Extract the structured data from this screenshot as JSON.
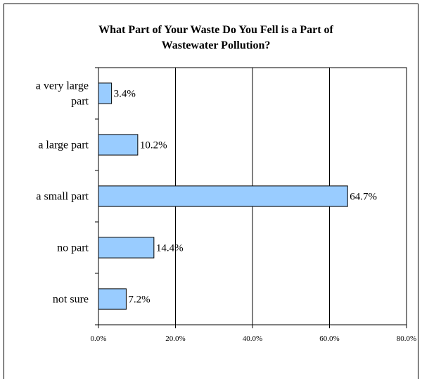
{
  "chart_data": {
    "type": "bar",
    "orientation": "horizontal",
    "title": "What Part of Your Waste Do You Fell is a Part of Wastewater Pollution?",
    "title_lines": [
      "What Part of Your Waste Do You Fell is a Part of",
      "Wastewater Pollution?"
    ],
    "categories": [
      "a very large part",
      "a large part",
      "a small part",
      "no part",
      "not sure"
    ],
    "category_lines": [
      [
        "a very large",
        "part"
      ],
      [
        "a large part"
      ],
      [
        "a small part"
      ],
      [
        "no part"
      ],
      [
        "not sure"
      ]
    ],
    "values": [
      3.4,
      10.2,
      64.7,
      14.4,
      7.2
    ],
    "value_labels": [
      "3.4%",
      "10.2%",
      "64.7%",
      "14.4%",
      "7.2%"
    ],
    "xlim": [
      0,
      80
    ],
    "xticks": [
      0,
      20,
      40,
      60,
      80
    ],
    "xtick_labels": [
      "0.0%",
      "20.0%",
      "40.0%",
      "60.0%",
      "80.0%"
    ],
    "xlabel": "",
    "ylabel": "",
    "grid": "vertical major gridlines",
    "legend": "none",
    "bar_color": "#99ccff",
    "bar_edge_color": "#000000"
  }
}
